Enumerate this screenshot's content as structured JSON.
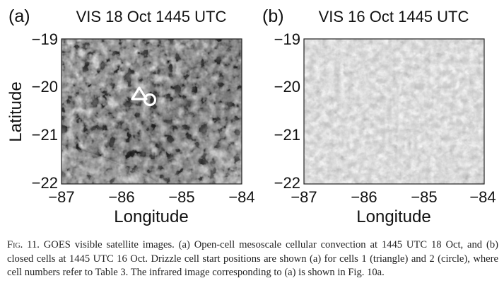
{
  "figure": {
    "panels": [
      {
        "id": "a",
        "label": "(a)",
        "title": "VIS 18 Oct 1445 UTC",
        "xlabel": "Longitude",
        "ylabel": "Latitude",
        "xticks": [
          "−87",
          "−86",
          "−85",
          "−84"
        ],
        "yticks": [
          "−19",
          "−20",
          "−21",
          "−22"
        ],
        "texture": "open-cell",
        "markers": [
          {
            "name": "cell-1-start-triangle",
            "shape": "triangle",
            "lon": -85.57,
            "lat": -20.17
          },
          {
            "name": "cell-2-start-circle",
            "shape": "circle",
            "lon": -85.37,
            "lat": -20.3
          }
        ]
      },
      {
        "id": "b",
        "label": "(b)",
        "title": "VIS 16 Oct 1445 UTC",
        "xlabel": "Longitude",
        "ylabel": "",
        "xticks": [
          "−87",
          "−86",
          "−85",
          "−84"
        ],
        "yticks": [
          "−19",
          "−20",
          "−21",
          "−22"
        ],
        "texture": "closed-cell",
        "markers": []
      }
    ]
  },
  "caption": {
    "label": "Fig. 11.",
    "text": "GOES visible satellite images. (a) Open-cell mesoscale cellular convection at 1445 UTC 18 Oct, and (b) closed cells at 1445 UTC 16 Oct. Drizzle cell start positions are shown (a) for cells 1 (triangle) and 2 (circle), where cell numbers refer to Table 3. The infrared image corresponding to (a) is shown in Fig. 10a."
  }
}
